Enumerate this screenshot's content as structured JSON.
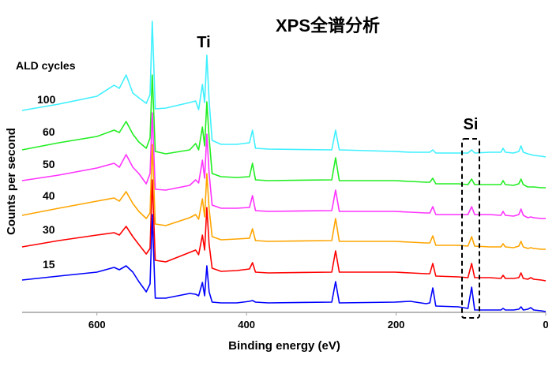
{
  "chart_data": {
    "type": "line",
    "title": "XPS全谱分析",
    "xlabel": "Binding energy (eV)",
    "ylabel": "Counts per second",
    "xlim": [
      700,
      0
    ],
    "ylim": [
      5,
      375
    ],
    "x_ticks": [
      600,
      400,
      200,
      0
    ],
    "grid": false,
    "legend_title": "ALD cycles",
    "annotations": {
      "ti": "Ti",
      "si": "Si"
    },
    "x": [
      700,
      651,
      600,
      577,
      570,
      561,
      552,
      544,
      534,
      529,
      526,
      522,
      508,
      476,
      468,
      464,
      459,
      456,
      453,
      450,
      446,
      434,
      413,
      396,
      392,
      388,
      371,
      286,
      281,
      276,
      202,
      181,
      160,
      155,
      151,
      147,
      117,
      104,
      99,
      95,
      75,
      60,
      57,
      54,
      43,
      36,
      33,
      30,
      24,
      20,
      16,
      6,
      0
    ],
    "series": [
      {
        "name": "100",
        "color": "#3ff0ff",
        "y": [
          260,
          268,
          278,
          292,
          288,
          305,
          282,
          276,
          269,
          280,
          373,
          262,
          263,
          270,
          272,
          261,
          293,
          270,
          330,
          272,
          222,
          217,
          217,
          219,
          235,
          212,
          211,
          210,
          235,
          210,
          208,
          207,
          207,
          207,
          210,
          206,
          206,
          206,
          210,
          206,
          207,
          207,
          212,
          207,
          206,
          208,
          215,
          207,
          205,
          204,
          203,
          202,
          201
        ]
      },
      {
        "name": "60",
        "color": "#22ee22",
        "y": [
          210,
          219,
          227,
          235,
          232,
          246,
          230,
          220,
          212,
          225,
          305,
          208,
          205,
          210,
          218,
          210,
          239,
          215,
          271,
          225,
          180,
          176,
          175,
          176,
          193,
          172,
          171,
          172,
          200,
          171,
          171,
          170,
          169,
          169,
          174,
          167,
          167,
          166,
          173,
          166,
          166,
          166,
          171,
          166,
          165,
          167,
          173,
          166,
          163,
          163,
          163,
          162,
          162
        ]
      },
      {
        "name": "50",
        "color": "#ff33ff",
        "y": [
          171,
          178,
          187,
          193,
          188,
          204,
          188,
          180,
          167,
          180,
          257,
          160,
          159,
          165,
          172,
          168,
          197,
          174,
          230,
          180,
          140,
          136,
          136,
          137,
          152,
          133,
          132,
          133,
          159,
          132,
          132,
          131,
          130,
          130,
          138,
          128,
          128,
          128,
          138,
          128,
          128,
          127,
          132,
          127,
          126,
          128,
          135,
          127,
          124,
          125,
          124,
          123,
          123
        ]
      },
      {
        "name": "40",
        "color": "#ffa500",
        "y": [
          127,
          136,
          145,
          149,
          145,
          157,
          142,
          132,
          123,
          130,
          217,
          116,
          114,
          124,
          128,
          122,
          148,
          125,
          180,
          135,
          100,
          96,
          97,
          98,
          110,
          95,
          94,
          95,
          123,
          94,
          94,
          93,
          92,
          92,
          101,
          89,
          89,
          88,
          100,
          88,
          87,
          87,
          91,
          87,
          86,
          88,
          94,
          87,
          85,
          86,
          85,
          84,
          84
        ]
      },
      {
        "name": "30",
        "color": "#ff0000",
        "y": [
          87,
          95,
          102,
          105,
          102,
          113,
          100,
          90,
          78,
          85,
          172,
          70,
          68,
          80,
          83,
          77,
          102,
          83,
          137,
          90,
          60,
          56,
          57,
          59,
          67,
          55,
          54,
          55,
          82,
          55,
          55,
          54,
          53,
          53,
          66,
          50,
          49,
          48,
          66,
          48,
          48,
          47,
          51,
          47,
          47,
          48,
          54,
          47,
          46,
          48,
          46,
          45,
          44
        ]
      },
      {
        "name": "15",
        "color": "#0000ff",
        "y": [
          45,
          50,
          55,
          61,
          58,
          63,
          55,
          43,
          30,
          40,
          128,
          22,
          22,
          28,
          27,
          25,
          42,
          25,
          63,
          30,
          17,
          16,
          16,
          18,
          19,
          17,
          16,
          17,
          43,
          16,
          17,
          18,
          15,
          16,
          35,
          12,
          11,
          9,
          36,
          7,
          7,
          7,
          9,
          7,
          7,
          8,
          11,
          7,
          8,
          10,
          7,
          6,
          5
        ]
      }
    ]
  }
}
